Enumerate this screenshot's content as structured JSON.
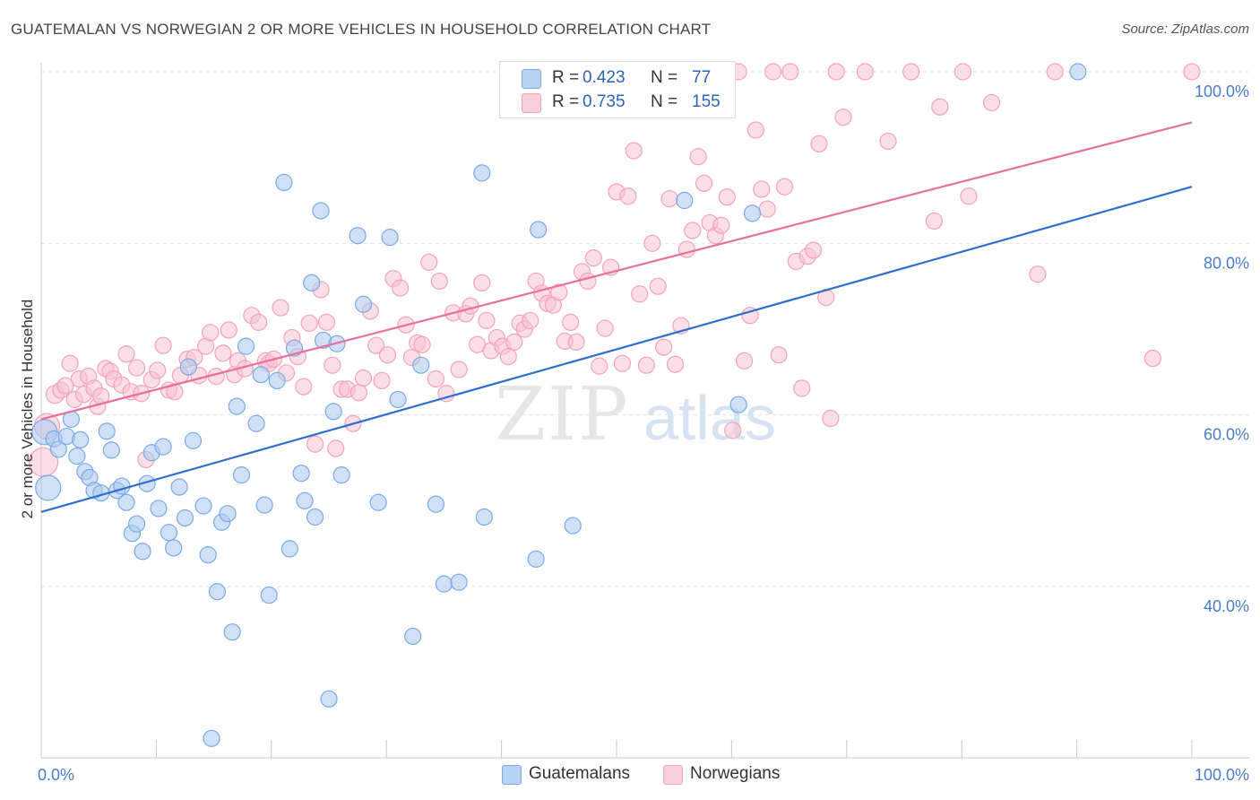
{
  "title": "GUATEMALAN VS NORWEGIAN 2 OR MORE VEHICLES IN HOUSEHOLD CORRELATION CHART",
  "source": "Source: ZipAtlas.com",
  "watermark": {
    "zip": "ZIP",
    "atlas": "atlas"
  },
  "legend": {
    "rows": [
      {
        "r_label": "R =",
        "r_value": "0.423",
        "n_label": "N =",
        "n_value": "77",
        "color": "#7aaae6"
      },
      {
        "r_label": "R =",
        "r_value": "0.735",
        "n_label": "N =",
        "n_value": "155",
        "color": "#f4a3bb"
      }
    ],
    "bottom": [
      "Guatemalans",
      "Norwegians"
    ]
  },
  "colors": {
    "blue_fill": "#a9c8f0",
    "blue_stroke": "#7aaae6",
    "blue_line": "#2f6fcf",
    "pink_fill": "#f7c3d2",
    "pink_stroke": "#f4a3bb",
    "pink_line": "#e8709a",
    "grid": "#e3e3e3",
    "tick_label": "#4a7cc9"
  },
  "chart_data": {
    "type": "scatter",
    "title": "GUATEMALAN VS NORWEGIAN 2 OR MORE VEHICLES IN HOUSEHOLD CORRELATION CHART",
    "xlabel": "",
    "ylabel": "2 or more Vehicles in Household",
    "xlim": [
      0,
      100
    ],
    "ylim": [
      20,
      101
    ],
    "x_tick_labels": [
      "0.0%",
      "100.0%"
    ],
    "y_ticks": [
      40,
      60,
      80,
      100
    ],
    "y_tick_labels": [
      "40.0%",
      "60.0%",
      "80.0%",
      "100.0%"
    ],
    "grid": true,
    "legend_position": "top-center",
    "series": [
      {
        "name": "Guatemalans",
        "r": 0.423,
        "n": 77,
        "trend": [
          [
            0,
            48.7
          ],
          [
            100,
            86.6
          ]
        ],
        "points": [
          [
            0.3,
            58.0,
            14
          ],
          [
            0.6,
            51.5,
            14
          ],
          [
            1.1,
            57.2,
            9
          ],
          [
            1.5,
            56.0,
            9
          ],
          [
            2.2,
            57.5,
            9
          ],
          [
            2.6,
            59.5,
            9
          ],
          [
            3.1,
            55.2,
            9
          ],
          [
            3.4,
            57.1,
            9
          ],
          [
            3.8,
            53.4,
            9
          ],
          [
            4.2,
            52.7,
            9
          ],
          [
            4.6,
            51.2,
            9
          ],
          [
            5.2,
            50.9,
            9
          ],
          [
            5.7,
            58.1,
            9
          ],
          [
            6.1,
            55.9,
            9
          ],
          [
            6.6,
            51.2,
            9
          ],
          [
            7.0,
            51.7,
            9
          ],
          [
            7.4,
            49.8,
            9
          ],
          [
            7.9,
            46.2,
            9
          ],
          [
            8.3,
            47.3,
            9
          ],
          [
            8.8,
            44.1,
            9
          ],
          [
            9.2,
            52.0,
            9
          ],
          [
            9.6,
            55.6,
            9
          ],
          [
            10.2,
            49.1,
            9
          ],
          [
            10.6,
            56.3,
            9
          ],
          [
            11.1,
            46.3,
            9
          ],
          [
            11.5,
            44.5,
            9
          ],
          [
            12.0,
            51.6,
            9
          ],
          [
            12.5,
            48.0,
            9
          ],
          [
            12.8,
            65.6,
            9
          ],
          [
            13.2,
            57.0,
            9
          ],
          [
            14.1,
            49.4,
            9
          ],
          [
            14.5,
            43.7,
            9
          ],
          [
            14.8,
            22.3,
            9
          ],
          [
            15.3,
            39.4,
            9
          ],
          [
            15.7,
            47.5,
            9
          ],
          [
            16.2,
            48.5,
            9
          ],
          [
            16.6,
            34.7,
            9
          ],
          [
            17.0,
            61.0,
            9
          ],
          [
            17.4,
            53.0,
            9
          ],
          [
            17.8,
            68.0,
            9
          ],
          [
            18.7,
            59.0,
            9
          ],
          [
            19.1,
            64.7,
            9
          ],
          [
            19.4,
            49.5,
            9
          ],
          [
            19.8,
            39.0,
            9
          ],
          [
            20.5,
            64.0,
            9
          ],
          [
            21.1,
            87.1,
            9
          ],
          [
            21.6,
            44.4,
            9
          ],
          [
            22.0,
            67.8,
            9
          ],
          [
            22.6,
            53.2,
            9
          ],
          [
            22.9,
            50.0,
            9
          ],
          [
            23.5,
            75.4,
            9
          ],
          [
            23.8,
            48.1,
            9
          ],
          [
            24.3,
            83.8,
            9
          ],
          [
            24.5,
            68.7,
            9
          ],
          [
            25.0,
            26.9,
            9
          ],
          [
            25.4,
            60.4,
            9
          ],
          [
            25.7,
            68.3,
            9
          ],
          [
            26.1,
            53.0,
            9
          ],
          [
            27.5,
            80.9,
            9
          ],
          [
            28.0,
            72.9,
            9
          ],
          [
            29.3,
            49.8,
            9
          ],
          [
            30.3,
            80.7,
            9
          ],
          [
            31.0,
            61.8,
            9
          ],
          [
            32.3,
            34.2,
            9
          ],
          [
            33.0,
            65.8,
            9
          ],
          [
            34.3,
            49.6,
            9
          ],
          [
            35.0,
            40.3,
            9
          ],
          [
            36.3,
            40.5,
            9
          ],
          [
            38.3,
            88.2,
            9
          ],
          [
            38.5,
            48.1,
            9
          ],
          [
            43.0,
            43.2,
            9
          ],
          [
            43.2,
            81.6,
            9
          ],
          [
            46.2,
            47.1,
            9
          ],
          [
            55.9,
            85.0,
            9
          ],
          [
            60.6,
            61.2,
            9
          ],
          [
            61.8,
            83.5,
            9
          ],
          [
            90.1,
            100.0,
            9
          ]
        ]
      },
      {
        "name": "Norwegians",
        "r": 0.735,
        "n": 155,
        "trend": [
          [
            0,
            59.5
          ],
          [
            100,
            94.1
          ]
        ],
        "points": [
          [
            0.2,
            54.5,
            16
          ],
          [
            0.5,
            58.7,
            14
          ],
          [
            1.2,
            62.4,
            10
          ],
          [
            1.7,
            62.9,
            9
          ],
          [
            2.1,
            63.4,
            9
          ],
          [
            2.5,
            66.0,
            9
          ],
          [
            2.9,
            61.8,
            9
          ],
          [
            3.3,
            64.2,
            9
          ],
          [
            3.7,
            62.4,
            9
          ],
          [
            4.1,
            64.5,
            9
          ],
          [
            4.6,
            63.1,
            9
          ],
          [
            4.9,
            61.0,
            9
          ],
          [
            5.2,
            62.2,
            9
          ],
          [
            5.6,
            65.4,
            9
          ],
          [
            6.0,
            65.1,
            9
          ],
          [
            6.3,
            64.2,
            9
          ],
          [
            7.0,
            63.5,
            9
          ],
          [
            7.4,
            67.1,
            9
          ],
          [
            7.8,
            62.7,
            9
          ],
          [
            8.3,
            65.5,
            9
          ],
          [
            8.7,
            62.5,
            9
          ],
          [
            9.1,
            54.8,
            9
          ],
          [
            9.6,
            64.1,
            9
          ],
          [
            10.1,
            65.2,
            9
          ],
          [
            10.6,
            68.1,
            9
          ],
          [
            11.1,
            62.9,
            9
          ],
          [
            11.6,
            62.7,
            9
          ],
          [
            12.1,
            64.6,
            9
          ],
          [
            12.7,
            66.5,
            9
          ],
          [
            13.3,
            66.7,
            9
          ],
          [
            13.7,
            64.6,
            9
          ],
          [
            14.3,
            68.0,
            9
          ],
          [
            14.7,
            69.6,
            9
          ],
          [
            15.2,
            64.5,
            9
          ],
          [
            15.8,
            67.2,
            9
          ],
          [
            16.3,
            69.9,
            9
          ],
          [
            16.8,
            64.7,
            9
          ],
          [
            17.1,
            66.3,
            9
          ],
          [
            17.7,
            65.4,
            9
          ],
          [
            18.3,
            71.6,
            9
          ],
          [
            18.9,
            70.8,
            9
          ],
          [
            19.5,
            66.3,
            9
          ],
          [
            19.8,
            66.0,
            9
          ],
          [
            20.2,
            66.5,
            9
          ],
          [
            20.8,
            72.5,
            9
          ],
          [
            21.3,
            64.9,
            9
          ],
          [
            21.8,
            69.0,
            9
          ],
          [
            22.3,
            66.8,
            9
          ],
          [
            22.8,
            63.3,
            9
          ],
          [
            23.3,
            70.7,
            9
          ],
          [
            23.8,
            56.6,
            9
          ],
          [
            24.3,
            74.6,
            9
          ],
          [
            24.8,
            70.8,
            9
          ],
          [
            25.3,
            65.8,
            9
          ],
          [
            25.6,
            56.1,
            9
          ],
          [
            26.1,
            63.0,
            9
          ],
          [
            26.6,
            63.0,
            9
          ],
          [
            27.1,
            59.0,
            9
          ],
          [
            27.6,
            62.6,
            9
          ],
          [
            28.0,
            64.3,
            9
          ],
          [
            28.6,
            72.1,
            9
          ],
          [
            29.1,
            68.1,
            9
          ],
          [
            29.6,
            64.0,
            9
          ],
          [
            30.1,
            67.0,
            9
          ],
          [
            30.6,
            75.9,
            9
          ],
          [
            31.2,
            74.8,
            9
          ],
          [
            31.7,
            70.5,
            9
          ],
          [
            32.2,
            66.7,
            9
          ],
          [
            32.7,
            68.4,
            9
          ],
          [
            33.1,
            68.2,
            9
          ],
          [
            33.7,
            77.8,
            9
          ],
          [
            34.3,
            64.2,
            9
          ],
          [
            34.6,
            75.6,
            9
          ],
          [
            35.2,
            62.5,
            9
          ],
          [
            35.8,
            71.9,
            9
          ],
          [
            36.3,
            65.3,
            9
          ],
          [
            36.9,
            71.8,
            9
          ],
          [
            37.3,
            72.7,
            9
          ],
          [
            37.9,
            68.2,
            9
          ],
          [
            38.3,
            75.4,
            9
          ],
          [
            38.7,
            71.0,
            9
          ],
          [
            39.1,
            67.5,
            9
          ],
          [
            39.6,
            69.0,
            9
          ],
          [
            40.1,
            68.0,
            9
          ],
          [
            40.6,
            66.8,
            9
          ],
          [
            41.1,
            68.5,
            9
          ],
          [
            41.6,
            70.7,
            9
          ],
          [
            42.0,
            70.0,
            9
          ],
          [
            42.5,
            71.0,
            9
          ],
          [
            43.0,
            75.6,
            9
          ],
          [
            43.5,
            74.2,
            9
          ],
          [
            44.0,
            73.0,
            9
          ],
          [
            44.5,
            72.8,
            9
          ],
          [
            45.0,
            74.3,
            9
          ],
          [
            45.5,
            68.6,
            9
          ],
          [
            46.0,
            70.8,
            9
          ],
          [
            46.5,
            68.5,
            9
          ],
          [
            47.0,
            76.7,
            9
          ],
          [
            47.5,
            75.6,
            9
          ],
          [
            48.0,
            78.3,
            9
          ],
          [
            48.5,
            65.7,
            9
          ],
          [
            49.0,
            70.1,
            9
          ],
          [
            49.5,
            77.2,
            9
          ],
          [
            50.0,
            86.0,
            9
          ],
          [
            50.5,
            66.0,
            9
          ],
          [
            51.0,
            85.5,
            9
          ],
          [
            51.5,
            90.8,
            9
          ],
          [
            52.0,
            74.1,
            9
          ],
          [
            52.6,
            65.8,
            9
          ],
          [
            53.1,
            80.0,
            9
          ],
          [
            53.6,
            75.0,
            9
          ],
          [
            54.1,
            67.9,
            9
          ],
          [
            54.6,
            85.2,
            9
          ],
          [
            55.1,
            65.9,
            9
          ],
          [
            55.6,
            70.4,
            9
          ],
          [
            56.1,
            79.3,
            9
          ],
          [
            56.6,
            81.5,
            9
          ],
          [
            57.1,
            90.1,
            9
          ],
          [
            57.6,
            87.0,
            9
          ],
          [
            58.1,
            82.4,
            9
          ],
          [
            58.6,
            80.9,
            9
          ],
          [
            59.1,
            82.1,
            9
          ],
          [
            59.6,
            85.4,
            9
          ],
          [
            60.1,
            58.2,
            9
          ],
          [
            60.6,
            100.0,
            9
          ],
          [
            61.1,
            66.3,
            9
          ],
          [
            61.6,
            71.6,
            9
          ],
          [
            62.1,
            93.2,
            9
          ],
          [
            62.6,
            86.3,
            9
          ],
          [
            63.1,
            84.0,
            9
          ],
          [
            63.6,
            100.0,
            9
          ],
          [
            64.1,
            67.0,
            9
          ],
          [
            64.6,
            86.6,
            9
          ],
          [
            65.1,
            100.0,
            9
          ],
          [
            65.6,
            77.9,
            9
          ],
          [
            66.1,
            63.1,
            9
          ],
          [
            66.6,
            78.5,
            9
          ],
          [
            67.1,
            79.2,
            9
          ],
          [
            67.6,
            91.6,
            9
          ],
          [
            68.2,
            73.7,
            9
          ],
          [
            68.6,
            59.6,
            9
          ],
          [
            69.1,
            100.0,
            9
          ],
          [
            69.7,
            94.7,
            9
          ],
          [
            71.6,
            100.0,
            9
          ],
          [
            73.6,
            91.9,
            9
          ],
          [
            75.6,
            100.0,
            9
          ],
          [
            77.6,
            82.6,
            9
          ],
          [
            78.1,
            95.9,
            9
          ],
          [
            80.1,
            100.0,
            9
          ],
          [
            80.6,
            85.5,
            9
          ],
          [
            82.6,
            96.4,
            9
          ],
          [
            86.6,
            76.4,
            9
          ],
          [
            88.1,
            100.0,
            9
          ],
          [
            96.6,
            66.6,
            9
          ],
          [
            100.0,
            100.0,
            9
          ]
        ]
      }
    ]
  }
}
